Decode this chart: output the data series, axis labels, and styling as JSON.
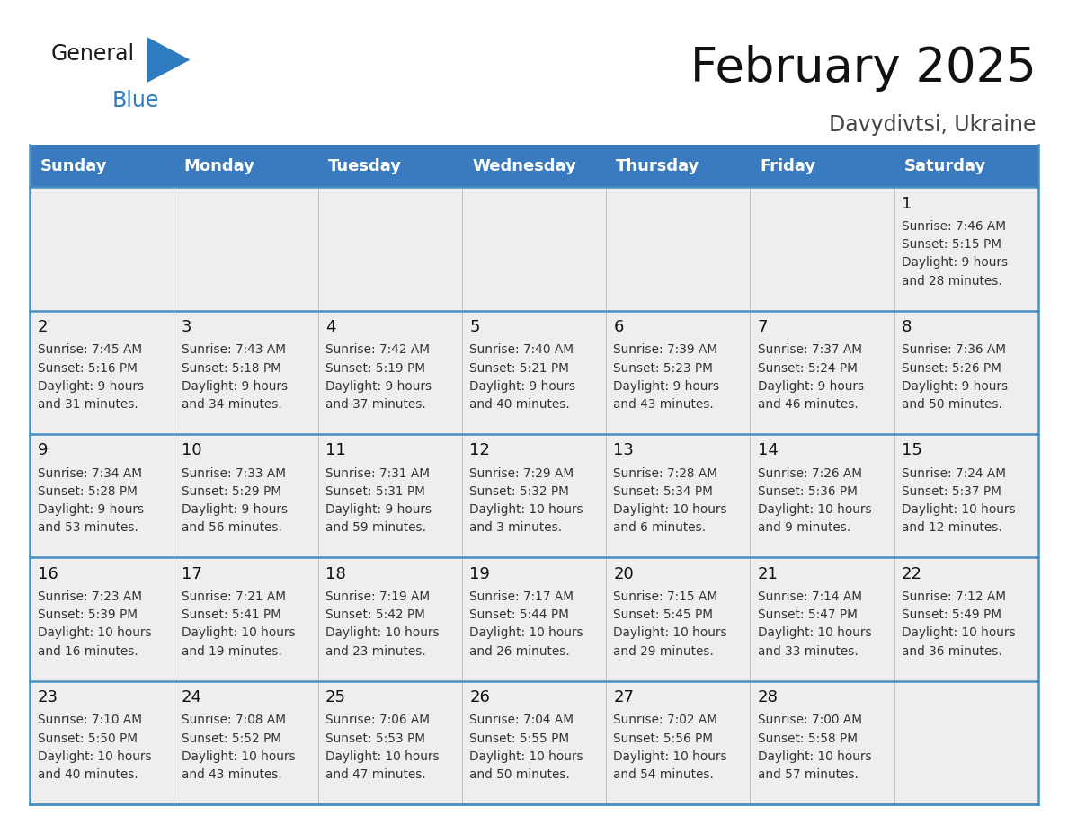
{
  "title": "February 2025",
  "subtitle": "Davydivtsi, Ukraine",
  "header_color": "#3a7abf",
  "header_text_color": "#ffffff",
  "cell_bg": "#eeeeee",
  "border_color": "#4a8fc0",
  "day_headers": [
    "Sunday",
    "Monday",
    "Tuesday",
    "Wednesday",
    "Thursday",
    "Friday",
    "Saturday"
  ],
  "title_fontsize": 38,
  "subtitle_fontsize": 17,
  "header_fontsize": 13,
  "cell_day_fontsize": 13,
  "cell_info_fontsize": 9.8,
  "day_number_color": "#111111",
  "info_text_color": "#333333",
  "logo_color1": "#1a1a1a",
  "logo_color2": "#2e7bbf",
  "calendar_data": [
    [
      null,
      null,
      null,
      null,
      null,
      null,
      {
        "day": "1",
        "lines": [
          "Sunrise: 7:46 AM",
          "Sunset: 5:15 PM",
          "Daylight: 9 hours",
          "and 28 minutes."
        ]
      }
    ],
    [
      {
        "day": "2",
        "lines": [
          "Sunrise: 7:45 AM",
          "Sunset: 5:16 PM",
          "Daylight: 9 hours",
          "and 31 minutes."
        ]
      },
      {
        "day": "3",
        "lines": [
          "Sunrise: 7:43 AM",
          "Sunset: 5:18 PM",
          "Daylight: 9 hours",
          "and 34 minutes."
        ]
      },
      {
        "day": "4",
        "lines": [
          "Sunrise: 7:42 AM",
          "Sunset: 5:19 PM",
          "Daylight: 9 hours",
          "and 37 minutes."
        ]
      },
      {
        "day": "5",
        "lines": [
          "Sunrise: 7:40 AM",
          "Sunset: 5:21 PM",
          "Daylight: 9 hours",
          "and 40 minutes."
        ]
      },
      {
        "day": "6",
        "lines": [
          "Sunrise: 7:39 AM",
          "Sunset: 5:23 PM",
          "Daylight: 9 hours",
          "and 43 minutes."
        ]
      },
      {
        "day": "7",
        "lines": [
          "Sunrise: 7:37 AM",
          "Sunset: 5:24 PM",
          "Daylight: 9 hours",
          "and 46 minutes."
        ]
      },
      {
        "day": "8",
        "lines": [
          "Sunrise: 7:36 AM",
          "Sunset: 5:26 PM",
          "Daylight: 9 hours",
          "and 50 minutes."
        ]
      }
    ],
    [
      {
        "day": "9",
        "lines": [
          "Sunrise: 7:34 AM",
          "Sunset: 5:28 PM",
          "Daylight: 9 hours",
          "and 53 minutes."
        ]
      },
      {
        "day": "10",
        "lines": [
          "Sunrise: 7:33 AM",
          "Sunset: 5:29 PM",
          "Daylight: 9 hours",
          "and 56 minutes."
        ]
      },
      {
        "day": "11",
        "lines": [
          "Sunrise: 7:31 AM",
          "Sunset: 5:31 PM",
          "Daylight: 9 hours",
          "and 59 minutes."
        ]
      },
      {
        "day": "12",
        "lines": [
          "Sunrise: 7:29 AM",
          "Sunset: 5:32 PM",
          "Daylight: 10 hours",
          "and 3 minutes."
        ]
      },
      {
        "day": "13",
        "lines": [
          "Sunrise: 7:28 AM",
          "Sunset: 5:34 PM",
          "Daylight: 10 hours",
          "and 6 minutes."
        ]
      },
      {
        "day": "14",
        "lines": [
          "Sunrise: 7:26 AM",
          "Sunset: 5:36 PM",
          "Daylight: 10 hours",
          "and 9 minutes."
        ]
      },
      {
        "day": "15",
        "lines": [
          "Sunrise: 7:24 AM",
          "Sunset: 5:37 PM",
          "Daylight: 10 hours",
          "and 12 minutes."
        ]
      }
    ],
    [
      {
        "day": "16",
        "lines": [
          "Sunrise: 7:23 AM",
          "Sunset: 5:39 PM",
          "Daylight: 10 hours",
          "and 16 minutes."
        ]
      },
      {
        "day": "17",
        "lines": [
          "Sunrise: 7:21 AM",
          "Sunset: 5:41 PM",
          "Daylight: 10 hours",
          "and 19 minutes."
        ]
      },
      {
        "day": "18",
        "lines": [
          "Sunrise: 7:19 AM",
          "Sunset: 5:42 PM",
          "Daylight: 10 hours",
          "and 23 minutes."
        ]
      },
      {
        "day": "19",
        "lines": [
          "Sunrise: 7:17 AM",
          "Sunset: 5:44 PM",
          "Daylight: 10 hours",
          "and 26 minutes."
        ]
      },
      {
        "day": "20",
        "lines": [
          "Sunrise: 7:15 AM",
          "Sunset: 5:45 PM",
          "Daylight: 10 hours",
          "and 29 minutes."
        ]
      },
      {
        "day": "21",
        "lines": [
          "Sunrise: 7:14 AM",
          "Sunset: 5:47 PM",
          "Daylight: 10 hours",
          "and 33 minutes."
        ]
      },
      {
        "day": "22",
        "lines": [
          "Sunrise: 7:12 AM",
          "Sunset: 5:49 PM",
          "Daylight: 10 hours",
          "and 36 minutes."
        ]
      }
    ],
    [
      {
        "day": "23",
        "lines": [
          "Sunrise: 7:10 AM",
          "Sunset: 5:50 PM",
          "Daylight: 10 hours",
          "and 40 minutes."
        ]
      },
      {
        "day": "24",
        "lines": [
          "Sunrise: 7:08 AM",
          "Sunset: 5:52 PM",
          "Daylight: 10 hours",
          "and 43 minutes."
        ]
      },
      {
        "day": "25",
        "lines": [
          "Sunrise: 7:06 AM",
          "Sunset: 5:53 PM",
          "Daylight: 10 hours",
          "and 47 minutes."
        ]
      },
      {
        "day": "26",
        "lines": [
          "Sunrise: 7:04 AM",
          "Sunset: 5:55 PM",
          "Daylight: 10 hours",
          "and 50 minutes."
        ]
      },
      {
        "day": "27",
        "lines": [
          "Sunrise: 7:02 AM",
          "Sunset: 5:56 PM",
          "Daylight: 10 hours",
          "and 54 minutes."
        ]
      },
      {
        "day": "28",
        "lines": [
          "Sunrise: 7:00 AM",
          "Sunset: 5:58 PM",
          "Daylight: 10 hours",
          "and 57 minutes."
        ]
      },
      null
    ]
  ]
}
